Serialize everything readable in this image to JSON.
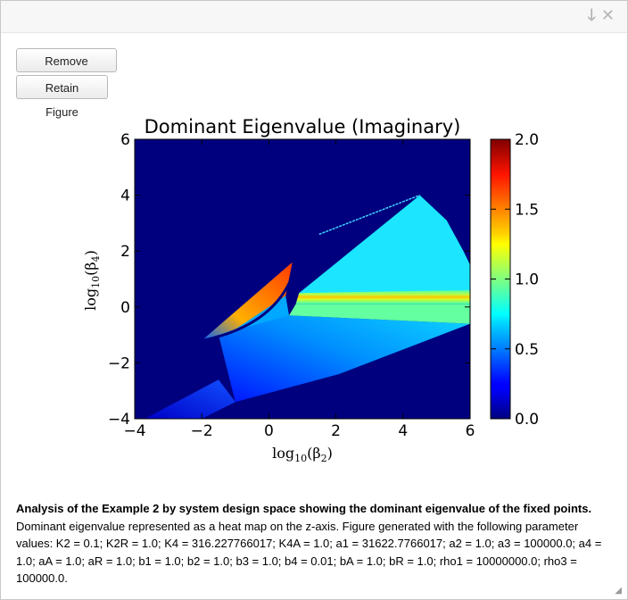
{
  "window": {
    "icons": [
      "arrow-down-icon",
      "close-icon"
    ],
    "download_glyph": "🡓",
    "close_glyph": "✕"
  },
  "buttons": {
    "remove_label": "Remove Figure",
    "retain_label": "Retain Figure"
  },
  "chart_data": {
    "type": "heatmap",
    "title": "Dominant Eigenvalue (Imaginary)",
    "xlabel_base": "log",
    "xlabel_sub": "10",
    "xlabel_arg": "(β",
    "xlabel_arg_sub": "2",
    "xlabel_close": ")",
    "ylabel_base": "log",
    "ylabel_sub": "10",
    "ylabel_arg": "(β",
    "ylabel_arg_sub": "4",
    "ylabel_close": ")",
    "xlim": [
      -4,
      6
    ],
    "ylim": [
      -4,
      6
    ],
    "xticks": [
      "−4",
      "−2",
      "0",
      "2",
      "4",
      "6"
    ],
    "yticks": [
      "−4",
      "−2",
      "0",
      "2",
      "4",
      "6"
    ],
    "colorbar": {
      "range": [
        0,
        2
      ],
      "ticks": [
        "0.0",
        "0.5",
        "1.0",
        "1.5",
        "2.0"
      ],
      "colormap": "jet"
    },
    "background_value": 0,
    "regions": [
      {
        "name": "upper-band-top",
        "value": 0.6,
        "polygon": [
          [
            0.9,
            0.5
          ],
          [
            4.5,
            4.0
          ],
          [
            5.3,
            3.1
          ],
          [
            5.8,
            2.0
          ],
          [
            6.0,
            1.5
          ],
          [
            6.0,
            0.5
          ],
          [
            1.0,
            0.1
          ]
        ]
      },
      {
        "name": "upper-band-mid",
        "value": 1.3,
        "polygon": [
          [
            0.9,
            0.5
          ],
          [
            6.0,
            0.6
          ],
          [
            6.0,
            0.1
          ],
          [
            0.8,
            0.1
          ]
        ]
      },
      {
        "name": "upper-band-bottom",
        "value": 1.0,
        "polygon": [
          [
            0.8,
            0.1
          ],
          [
            6.0,
            0.1
          ],
          [
            6.0,
            -0.6
          ],
          [
            0.6,
            -0.3
          ]
        ]
      },
      {
        "name": "lower-wedge",
        "value": 0.35,
        "polygon": [
          [
            -1.0,
            -3.4
          ],
          [
            2.1,
            -2.4
          ],
          [
            6.0,
            -0.6
          ],
          [
            0.6,
            -0.3
          ],
          [
            0.2,
            0.2
          ],
          [
            -1.5,
            -1.0
          ]
        ]
      },
      {
        "name": "left-wedge",
        "value": 1.6,
        "polygon": [
          [
            -2.0,
            -1.2
          ],
          [
            0.7,
            1.6
          ],
          [
            0.5,
            0.4
          ],
          [
            -1.0,
            -0.8
          ]
        ]
      },
      {
        "name": "left-wedge-fade",
        "value": 0.7,
        "polygon": [
          [
            -1.0,
            -0.8
          ],
          [
            0.5,
            0.4
          ],
          [
            0.6,
            -0.3
          ],
          [
            -1.5,
            -1.0
          ]
        ]
      },
      {
        "name": "bottom-tail",
        "value": 0.2,
        "polygon": [
          [
            -3.7,
            -4.0
          ],
          [
            -1.5,
            -2.6
          ],
          [
            -1.0,
            -3.4
          ],
          [
            -2.0,
            -4.0
          ]
        ]
      }
    ],
    "lines": [
      {
        "name": "streak",
        "value": 0.55,
        "points": [
          [
            1.5,
            2.6
          ],
          [
            4.5,
            4.0
          ]
        ]
      }
    ]
  },
  "caption": {
    "bold": "Analysis of the Example 2 by system design space showing the dominant eigenvalue of the fixed points.",
    "text": " Dominant eigenvalue represented as a heat map on the z-axis. Figure generated with the following parameter values: K2 = 0.1; K2R = 1.0; K4 = 316.227766017; K4A = 1.0; a1 = 31622.7766017; a2 = 1.0; a3 = 100000.0; a4 = 1.0; aA = 1.0; aR = 1.0; b1 = 1.0; b2 = 1.0; b3 = 1.0; b4 = 0.01; bA = 1.0; bR = 1.0; rho1 = 10000000.0; rho3 = 100000.0."
  }
}
